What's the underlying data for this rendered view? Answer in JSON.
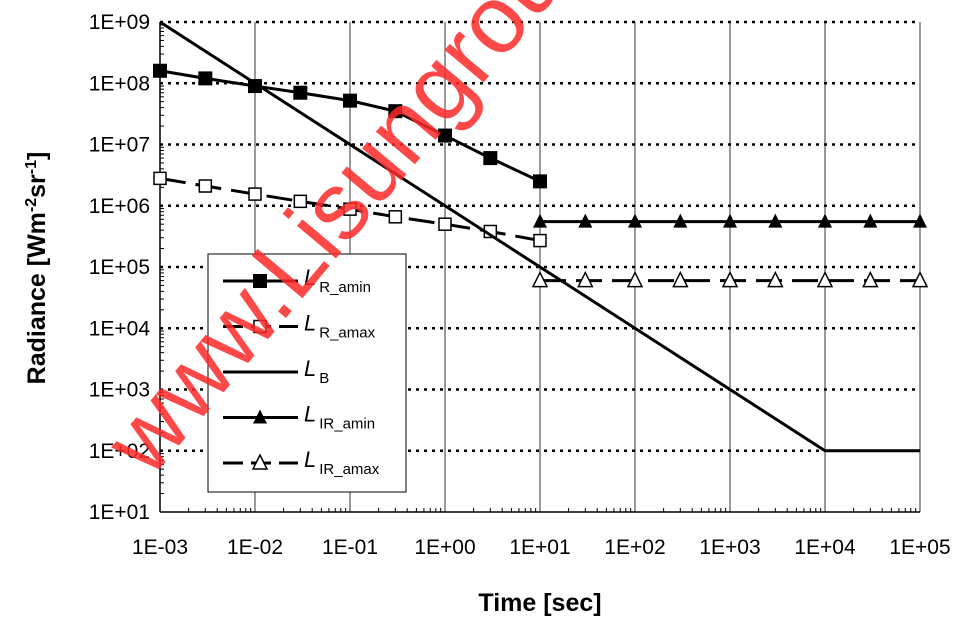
{
  "chart_data": {
    "type": "line",
    "xlabel": "Time [sec]",
    "ylabel": {
      "base": "Radiance [Wm",
      "sup1": "-2",
      "mid": "sr",
      "sup2": "-1",
      "end": "]"
    },
    "xscale": "log",
    "yscale": "log",
    "xlim": [
      0.001,
      100000
    ],
    "ylim": [
      10,
      1000000000
    ],
    "x_ticks": [
      0.001,
      0.01,
      0.1,
      1,
      10,
      100,
      1000,
      10000,
      100000
    ],
    "x_tick_labels": [
      "1E-03",
      "1E-02",
      "1E-01",
      "1E+00",
      "1E+01",
      "1E+02",
      "1E+03",
      "1E+04",
      "1E+05"
    ],
    "y_ticks": [
      10,
      100,
      1000,
      10000,
      100000,
      1000000,
      10000000,
      100000000,
      1000000000
    ],
    "y_tick_labels": [
      "1E+01",
      "1E+02",
      "1E+03",
      "1E+04",
      "1E+05",
      "1E+06",
      "1E+07",
      "1E+08",
      "1E+09"
    ],
    "grid": {
      "x": "solid",
      "y": "dotted"
    },
    "legend_position": "lower-left",
    "series": [
      {
        "name": "L",
        "subscript": "R_amin",
        "marker": "filled-square",
        "line": "solid",
        "x": [
          0.001,
          0.003,
          0.01,
          0.03,
          0.1,
          0.3,
          1,
          3,
          10
        ],
        "y": [
          160000000,
          120000000,
          90000000,
          70000000,
          52000000,
          35000000,
          14000000,
          6000000,
          2500000
        ]
      },
      {
        "name": "L",
        "subscript": "R_amax",
        "marker": "open-square",
        "line": "dashed",
        "x": [
          0.001,
          0.003,
          0.01,
          0.03,
          0.1,
          0.3,
          1,
          3,
          10
        ],
        "y": [
          2800000,
          2100000,
          1550000,
          1180000,
          880000,
          660000,
          500000,
          380000,
          270000
        ]
      },
      {
        "name": "L",
        "subscript": "B",
        "marker": "none",
        "line": "solid",
        "x": [
          0.001,
          10000,
          100000
        ],
        "y": [
          1000000000,
          100,
          100
        ]
      },
      {
        "name": "L",
        "subscript": "IR_amin",
        "marker": "filled-triangle",
        "line": "solid",
        "x": [
          10,
          30,
          100,
          300,
          1000,
          3000,
          10000,
          30000,
          100000
        ],
        "y": [
          550000,
          550000,
          550000,
          550000,
          550000,
          550000,
          550000,
          550000,
          550000
        ]
      },
      {
        "name": "L",
        "subscript": "IR_amax",
        "marker": "open-triangle",
        "line": "dashed",
        "x": [
          10,
          30,
          100,
          300,
          1000,
          3000,
          10000,
          30000,
          100000
        ],
        "y": [
          60000,
          60000,
          60000,
          60000,
          60000,
          60000,
          60000,
          60000,
          60000
        ]
      }
    ]
  },
  "watermark": "www.Lisungroup.com"
}
